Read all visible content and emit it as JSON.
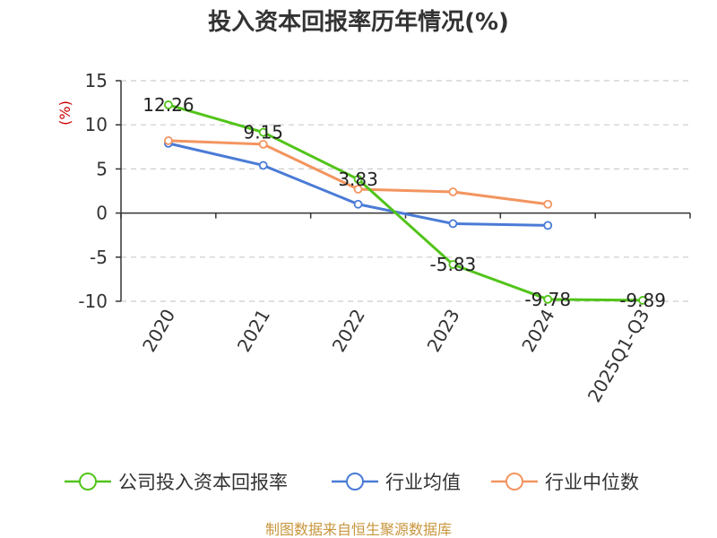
{
  "chart_data": {
    "type": "line",
    "title": "投入资本回报率历年情况(%)",
    "ylabel": "(%)",
    "xlabel": "",
    "ylim": [
      -10,
      15
    ],
    "yticks": [
      15,
      10,
      5,
      0,
      -5,
      -10
    ],
    "grid": true,
    "categories": [
      "2020",
      "2021",
      "2022",
      "2023",
      "2024",
      "2025Q1-Q3"
    ],
    "series": [
      {
        "name": "公司投入资本回报率",
        "color": "#52c41a",
        "values": [
          12.26,
          9.15,
          3.83,
          -5.83,
          -9.78,
          -9.89
        ],
        "labels": [
          "12.26",
          "9.15",
          "3.83",
          "-5.83",
          "-9.78",
          "-9.89"
        ]
      },
      {
        "name": "行业均值",
        "color": "#4a7bd6",
        "values": [
          7.9,
          5.4,
          1.0,
          -1.2,
          -1.4,
          null
        ]
      },
      {
        "name": "行业中位数",
        "color": "#f39560",
        "values": [
          8.2,
          7.8,
          2.7,
          2.4,
          1.0,
          null
        ]
      }
    ],
    "legend_position": "bottom",
    "source": "制图数据来自恒生聚源数据库"
  },
  "colors": {
    "title": "#333333",
    "ylabel": "#cc0000",
    "source": "#c8963e",
    "grid": "#cccccc",
    "axis": "#333333"
  }
}
